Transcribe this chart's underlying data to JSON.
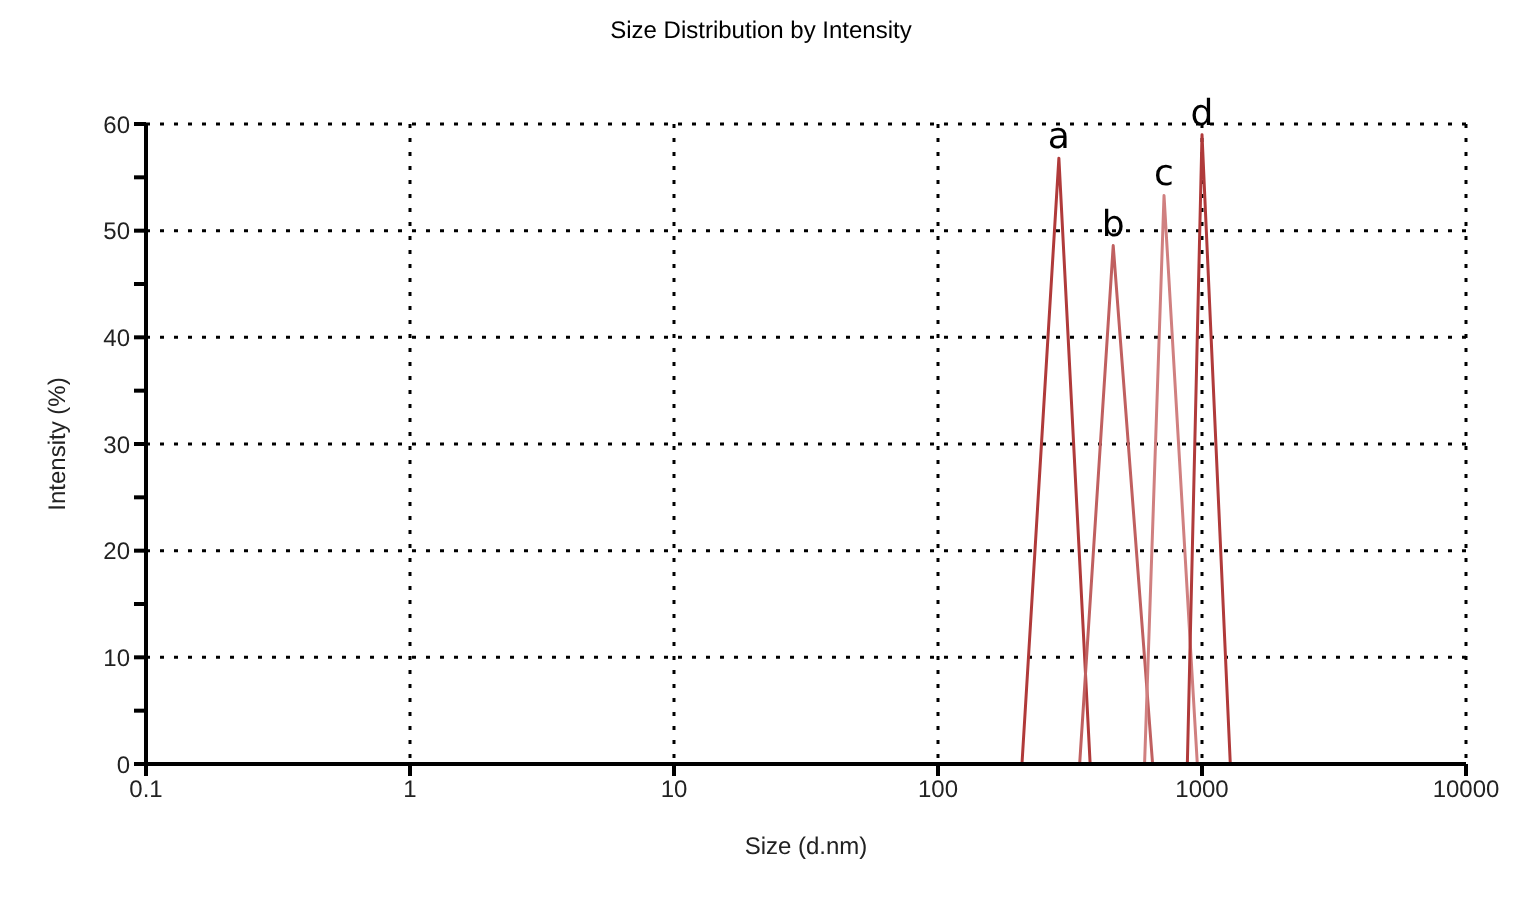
{
  "chart_data": {
    "type": "line",
    "title": "Size Distribution by Intensity",
    "xlabel": "Size (d.nm)",
    "ylabel": "Intensity (%)",
    "log": "x",
    "xlim": [
      0.1,
      10000
    ],
    "xticks": [
      0.1,
      1,
      10,
      100,
      1000,
      10000
    ],
    "ylim": [
      0,
      60
    ],
    "yticks": [
      0,
      {
        "value": 5,
        "label": null
      },
      10,
      {
        "value": 15,
        "label": null
      },
      20,
      {
        "value": 25,
        "label": null
      },
      30,
      {
        "value": 35,
        "label": null
      },
      40,
      {
        "value": 45,
        "label": null
      },
      50,
      {
        "value": 55,
        "label": null
      },
      60
    ],
    "grid": true,
    "marker": "none",
    "line_style": "solid",
    "series": [
      {
        "color": "#b03a3a",
        "x": [
          208,
          287,
          377
        ],
        "values": [
          0,
          56.8,
          0
        ]
      },
      {
        "color": "#c06060",
        "x": [
          344,
          461,
          650
        ],
        "values": [
          0,
          48.6,
          0
        ]
      },
      {
        "color": "#d08080",
        "x": [
          606,
          718,
          960
        ],
        "values": [
          0,
          53.3,
          0
        ]
      },
      {
        "color": "#b03a3a",
        "x": [
          880,
          1000,
          1280
        ],
        "values": [
          0,
          59,
          0
        ]
      }
    ],
    "annotations": [
      {
        "text": "a",
        "x": 287,
        "y": 56.8
      },
      {
        "text": "b",
        "x": 461,
        "y": 48.6
      },
      {
        "text": "c",
        "x": 718,
        "y": 53.3
      },
      {
        "text": "d",
        "x": 1000,
        "y": 59
      }
    ]
  }
}
